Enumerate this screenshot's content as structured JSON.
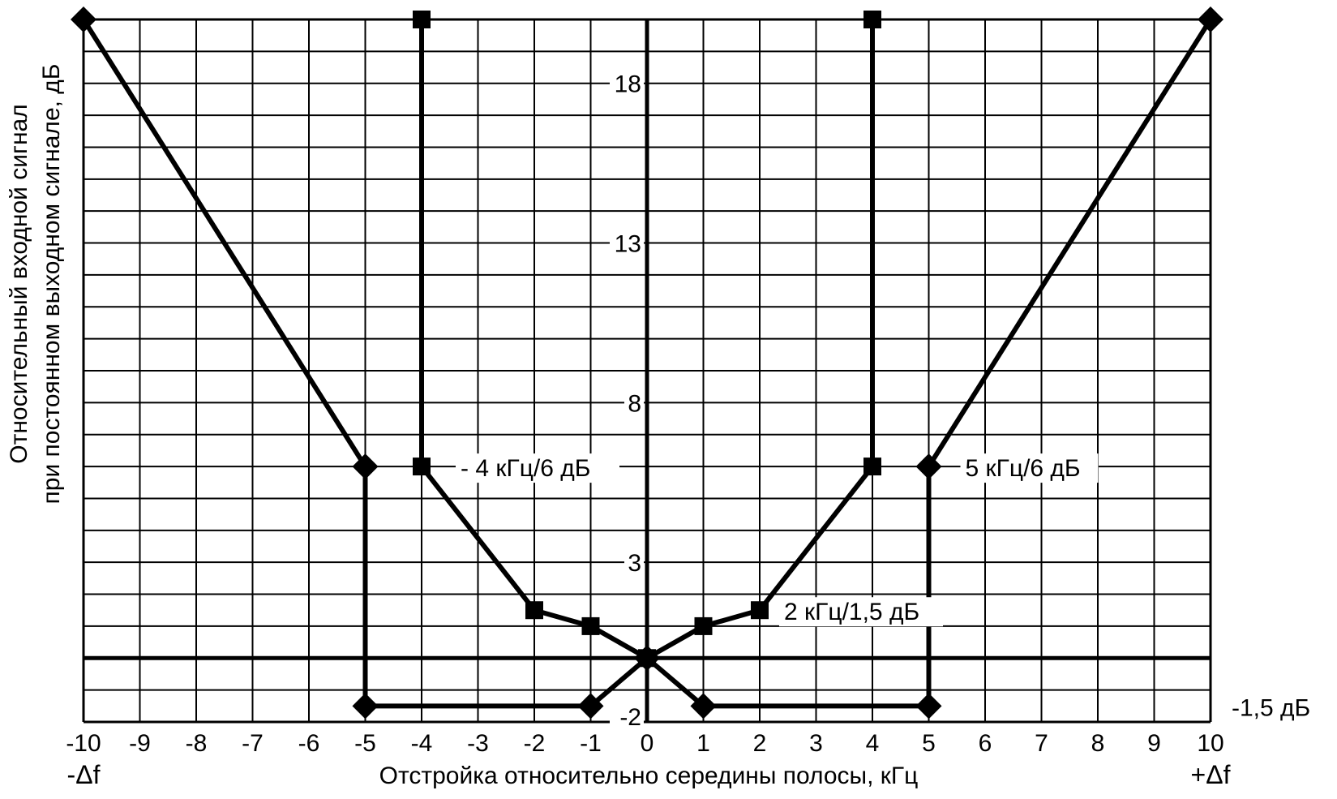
{
  "chart_data": {
    "type": "line",
    "xlabel": "Отстройка относительно середины полосы, кГц",
    "ylabel_line1": "Относительный входной сигнал",
    "ylabel_line2": "при постоянном выходном сигнале, дБ",
    "xlim": [
      -10,
      10
    ],
    "ylim": [
      -2,
      20
    ],
    "x_ticks": [
      "-10",
      "-9",
      "-8",
      "-7",
      "-6",
      "-5",
      "-4",
      "-3",
      "-2",
      "-1",
      "0",
      "1",
      "2",
      "3",
      "4",
      "5",
      "6",
      "7",
      "8",
      "9",
      "10"
    ],
    "x_tick_values": [
      -10,
      -9,
      -8,
      -7,
      -6,
      -5,
      -4,
      -3,
      -2,
      -1,
      0,
      1,
      2,
      3,
      4,
      5,
      6,
      7,
      8,
      9,
      10
    ],
    "y_ticks": [
      "18",
      "13",
      "8",
      "3",
      "-2"
    ],
    "y_tick_values": [
      18,
      13,
      8,
      3,
      -2
    ],
    "x_end_labels": [
      "-Δf",
      "+Δf"
    ],
    "grid": true,
    "series": [
      {
        "marker": "diamond",
        "points": [
          [
            -10,
            20
          ],
          [
            -5,
            6
          ],
          [
            -5,
            -1.5
          ],
          [
            -1,
            -1.5
          ],
          [
            0,
            0
          ],
          [
            1,
            -1.5
          ],
          [
            5,
            -1.5
          ],
          [
            5,
            6
          ],
          [
            10,
            20
          ]
        ]
      },
      {
        "marker": "square",
        "points": [
          [
            -4,
            20
          ],
          [
            -4,
            6
          ],
          [
            -2,
            1.5
          ],
          [
            -1,
            1
          ],
          [
            0,
            0
          ],
          [
            1,
            1
          ],
          [
            2,
            1.5
          ],
          [
            4,
            6
          ],
          [
            4,
            20
          ]
        ]
      }
    ],
    "annotations": [
      {
        "text": "- 4 кГц/6 дБ",
        "x": -4,
        "y": 6
      },
      {
        "text": "5 кГц/6 дБ",
        "x": 5,
        "y": 6
      },
      {
        "text": "2 кГц/1,5 дБ",
        "x": 2,
        "y": 1.5
      },
      {
        "text": "-1,5 дБ",
        "x": 10,
        "y": -1.5
      }
    ]
  }
}
